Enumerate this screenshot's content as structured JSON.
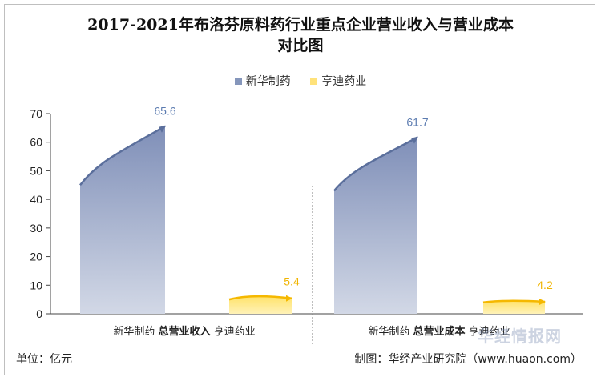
{
  "chart_data": {
    "type": "area",
    "title": "2017-2021年布洛芬原料药行业重点企业营业收入与营业成本对比图",
    "legend_position": "top",
    "ylim": [
      0,
      70
    ],
    "yticks": [
      "0",
      "10",
      "20",
      "30",
      "40",
      "50",
      "60",
      "70"
    ],
    "groups": [
      {
        "label": "总营业收入",
        "series": [
          {
            "name": "新华制药",
            "start": 45,
            "end": 65.6,
            "end_label": "65.6"
          },
          {
            "name": "亨迪药业",
            "start": 5,
            "peak": 6.5,
            "end": 5.4,
            "end_label": "5.4"
          }
        ]
      },
      {
        "label": "总营业成本",
        "series": [
          {
            "name": "新华制药",
            "start": 43,
            "end": 61.7,
            "end_label": "61.7"
          },
          {
            "name": "亨迪药业",
            "start": 4,
            "peak": 4.4,
            "end": 4.2,
            "end_label": "4.2"
          }
        ]
      }
    ],
    "colors": {
      "新华制药": "#8596bb",
      "亨迪药业": "#ffd54f"
    },
    "label_colors": {
      "新华制药": "#5b7bb0",
      "亨迪药业": "#f0b400"
    }
  },
  "legend": [
    {
      "name": "新华制药",
      "color": "#8596bb"
    },
    {
      "name": "亨迪药业",
      "color": "#ffe27a"
    }
  ],
  "unit_label": "单位：亿元",
  "source_label": "制图：华经产业研究院（www.huaon.com）",
  "watermark": "华经情报网"
}
